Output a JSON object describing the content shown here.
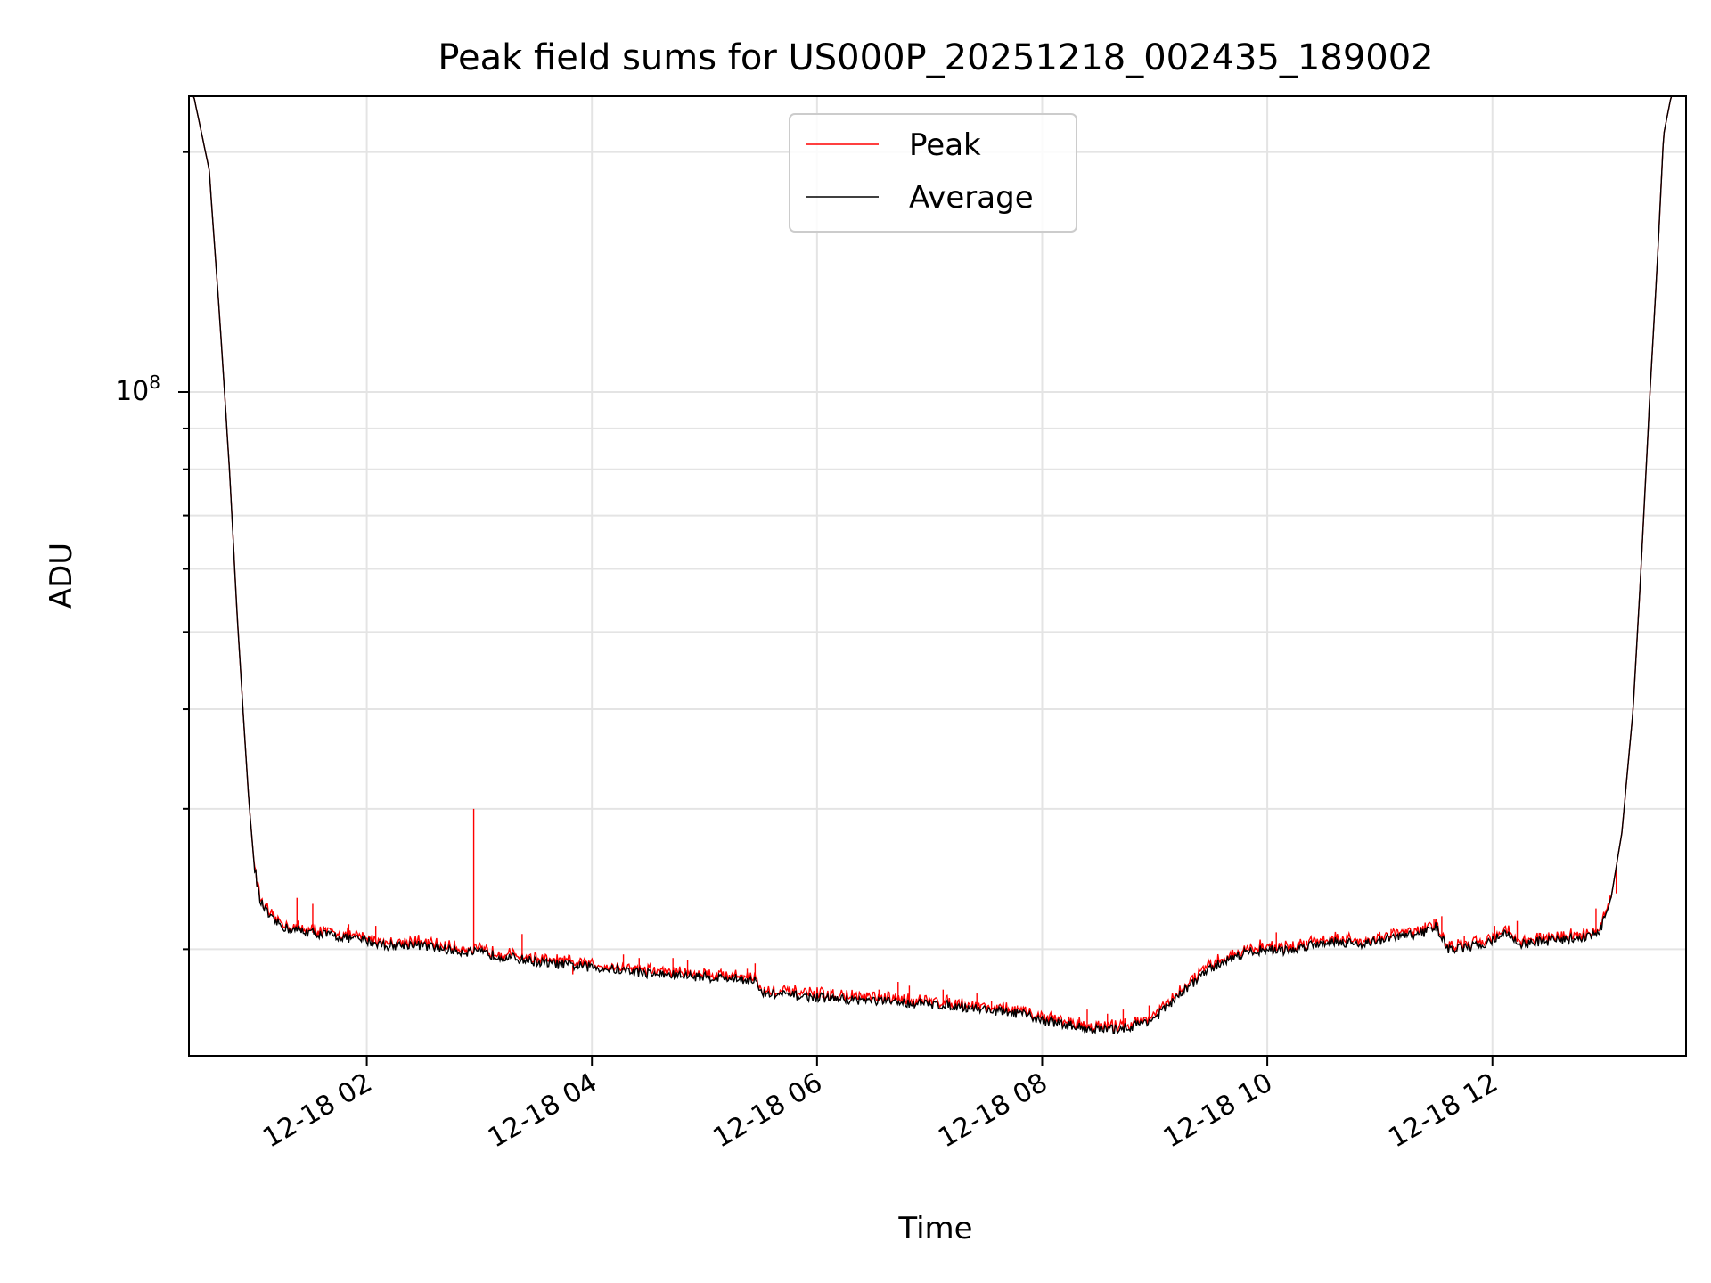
{
  "chart_data": {
    "type": "line",
    "title": "Peak field sums for US000P_20251218_002435_189002",
    "xlabel": "Time",
    "ylabel": "ADU",
    "yscale": "log",
    "xlim_hours": [
      0.42,
      13.72
    ],
    "ylim": [
      14700000,
      235000000
    ],
    "grid": true,
    "legend_position": "top-center",
    "x_ticks": [
      {
        "hour": 2,
        "label": "12-18 02"
      },
      {
        "hour": 4,
        "label": "12-18 04"
      },
      {
        "hour": 6,
        "label": "12-18 06"
      },
      {
        "hour": 8,
        "label": "12-18 08"
      },
      {
        "hour": 10,
        "label": "12-18 10"
      },
      {
        "hour": 12,
        "label": "12-18 12"
      }
    ],
    "y_tick_label": {
      "base": "10",
      "exp": "8"
    },
    "series": [
      {
        "name": "Peak",
        "color": "#ff0000",
        "spikes": [
          [
            1.38,
            23200000.0
          ],
          [
            1.52,
            22800000.0
          ],
          [
            1.84,
            21500000.0
          ],
          [
            2.08,
            21400000.0
          ],
          [
            2.95,
            30000000.0
          ],
          [
            3.38,
            20900000.0
          ],
          [
            3.83,
            18600000.0
          ],
          [
            4.05,
            18900000.0
          ],
          [
            4.18,
            18900000.0
          ],
          [
            4.28,
            19700000.0
          ],
          [
            4.42,
            19500000.0
          ],
          [
            4.72,
            19500000.0
          ],
          [
            4.85,
            19400000.0
          ],
          [
            5.02,
            18800000.0
          ],
          [
            5.15,
            18400000.0
          ],
          [
            5.38,
            18900000.0
          ],
          [
            5.45,
            19200000.0
          ],
          [
            6.05,
            17500000.0
          ],
          [
            6.3,
            17200000.0
          ],
          [
            6.55,
            17800000.0
          ],
          [
            6.72,
            18200000.0
          ],
          [
            6.82,
            18000000.0
          ],
          [
            7.12,
            17800000.0
          ],
          [
            7.42,
            17600000.0
          ],
          [
            7.55,
            17200000.0
          ],
          [
            7.78,
            17000000.0
          ],
          [
            8.0,
            16500000.0
          ],
          [
            8.25,
            16200000.0
          ],
          [
            8.4,
            16800000.0
          ],
          [
            8.58,
            16600000.0
          ],
          [
            8.72,
            16800000.0
          ],
          [
            8.95,
            17000000.0
          ],
          [
            10.08,
            21000000.0
          ],
          [
            10.35,
            20500000.0
          ],
          [
            10.62,
            20700000.0
          ],
          [
            11.1,
            21200000.0
          ],
          [
            11.48,
            21800000.0
          ],
          [
            11.55,
            22000000.0
          ],
          [
            11.75,
            20800000.0
          ],
          [
            12.02,
            21400000.0
          ],
          [
            12.22,
            21700000.0
          ],
          [
            12.5,
            21000000.0
          ],
          [
            12.92,
            22500000.0
          ],
          [
            13.1,
            23500000.0
          ]
        ]
      },
      {
        "name": "Average",
        "color": "#000000",
        "points": [
          [
            0.45,
            240000000.0
          ],
          [
            0.6,
            190000000.0
          ],
          [
            0.7,
            120000000.0
          ],
          [
            0.78,
            80000000.0
          ],
          [
            0.85,
            52000000.0
          ],
          [
            0.9,
            40000000.0
          ],
          [
            0.95,
            31000000.0
          ],
          [
            1.0,
            25500000.0
          ],
          [
            1.05,
            23000000.0
          ],
          [
            1.15,
            21800000.0
          ],
          [
            1.3,
            21200000.0
          ],
          [
            1.5,
            21000000.0
          ],
          [
            1.8,
            20700000.0
          ],
          [
            2.0,
            20500000.0
          ],
          [
            2.2,
            20200000.0
          ],
          [
            2.4,
            20300000.0
          ],
          [
            2.6,
            20100000.0
          ],
          [
            2.8,
            19900000.0
          ],
          [
            3.0,
            19800000.0
          ],
          [
            3.2,
            19600000.0
          ],
          [
            3.4,
            19400000.0
          ],
          [
            3.6,
            19200000.0
          ],
          [
            3.8,
            19100000.0
          ],
          [
            4.0,
            19000000.0
          ],
          [
            4.3,
            18800000.0
          ],
          [
            4.6,
            18600000.0
          ],
          [
            4.9,
            18500000.0
          ],
          [
            5.2,
            18400000.0
          ],
          [
            5.45,
            18300000.0
          ],
          [
            5.5,
            17600000.0
          ],
          [
            5.8,
            17500000.0
          ],
          [
            6.0,
            17400000.0
          ],
          [
            6.3,
            17300000.0
          ],
          [
            6.6,
            17200000.0
          ],
          [
            6.9,
            17100000.0
          ],
          [
            7.2,
            17000000.0
          ],
          [
            7.5,
            16800000.0
          ],
          [
            7.8,
            16600000.0
          ],
          [
            8.0,
            16300000.0
          ],
          [
            8.2,
            16100000.0
          ],
          [
            8.4,
            15900000.0
          ],
          [
            8.6,
            15850000.0
          ],
          [
            8.8,
            16000000.0
          ],
          [
            9.0,
            16400000.0
          ],
          [
            9.2,
            17400000.0
          ],
          [
            9.4,
            18500000.0
          ],
          [
            9.6,
            19300000.0
          ],
          [
            9.8,
            19800000.0
          ],
          [
            10.0,
            20000000.0
          ],
          [
            10.2,
            19900000.0
          ],
          [
            10.4,
            20300000.0
          ],
          [
            10.6,
            20500000.0
          ],
          [
            10.8,
            20300000.0
          ],
          [
            11.0,
            20500000.0
          ],
          [
            11.2,
            20800000.0
          ],
          [
            11.4,
            21000000.0
          ],
          [
            11.5,
            21400000.0
          ],
          [
            11.6,
            20000000.0
          ],
          [
            11.8,
            20100000.0
          ],
          [
            12.0,
            20500000.0
          ],
          [
            12.1,
            21000000.0
          ],
          [
            12.25,
            20300000.0
          ],
          [
            12.5,
            20500000.0
          ],
          [
            12.8,
            20700000.0
          ],
          [
            12.95,
            21000000.0
          ],
          [
            13.05,
            23000000.0
          ],
          [
            13.15,
            28000000.0
          ],
          [
            13.25,
            40000000.0
          ],
          [
            13.32,
            60000000.0
          ],
          [
            13.4,
            100000000.0
          ],
          [
            13.47,
            150000000.0
          ],
          [
            13.52,
            210000000.0
          ],
          [
            13.6,
            240000000.0
          ]
        ]
      }
    ]
  }
}
